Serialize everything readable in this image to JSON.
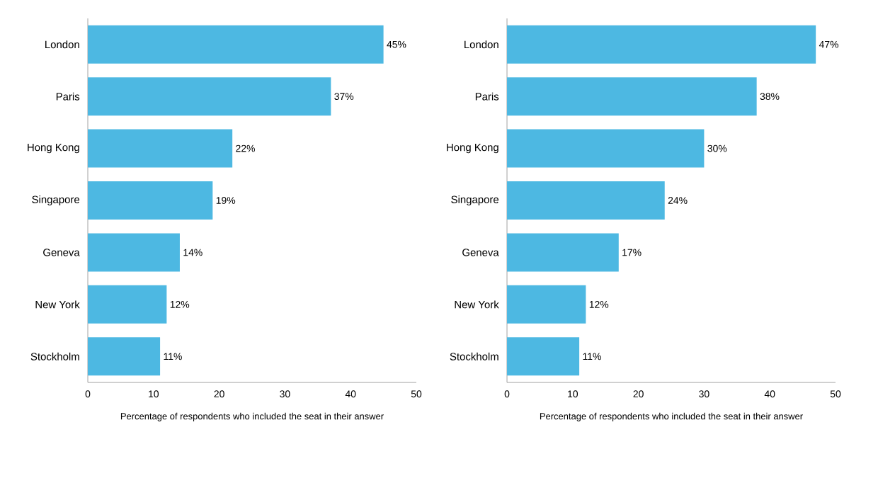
{
  "chart_data": [
    {
      "type": "bar",
      "orientation": "horizontal",
      "xlabel": "Percentage of respondents who included the seat in their answer",
      "categories": [
        "London",
        "Paris",
        "Hong Kong",
        "Singapore",
        "Geneva",
        "New York",
        "Stockholm"
      ],
      "values": [
        45,
        37,
        22,
        19,
        14,
        12,
        11
      ],
      "value_labels": [
        "45%",
        "37%",
        "22%",
        "19%",
        "14%",
        "12%",
        "11%"
      ],
      "color": "#4db8e2",
      "xlim": [
        0,
        50
      ],
      "xticks": [
        0,
        10,
        20,
        30,
        40,
        50
      ],
      "grid": false
    },
    {
      "type": "bar",
      "orientation": "horizontal",
      "xlabel": "Percentage of respondents who included the seat in their answer",
      "categories": [
        "London",
        "Paris",
        "Hong Kong",
        "Singapore",
        "Geneva",
        "New York",
        "Stockholm"
      ],
      "values": [
        47,
        38,
        30,
        24,
        17,
        12,
        11
      ],
      "value_labels": [
        "47%",
        "38%",
        "30%",
        "24%",
        "17%",
        "12%",
        "11%"
      ],
      "color": "#4db8e2",
      "xlim": [
        0,
        50
      ],
      "xticks": [
        0,
        10,
        20,
        30,
        40,
        50
      ],
      "grid": false
    }
  ]
}
